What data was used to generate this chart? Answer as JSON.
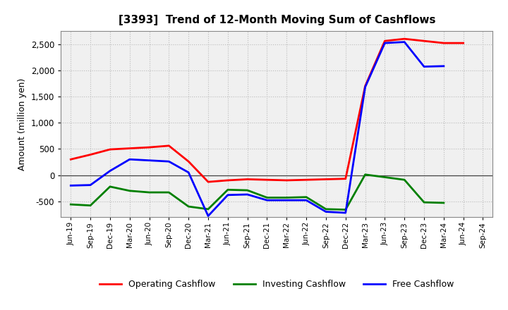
{
  "title": "[3393]  Trend of 12-Month Moving Sum of Cashflows",
  "ylabel": "Amount (million yen)",
  "x_labels": [
    "Jun-19",
    "Sep-19",
    "Dec-19",
    "Mar-20",
    "Jun-20",
    "Sep-20",
    "Dec-20",
    "Mar-21",
    "Jun-21",
    "Sep-21",
    "Dec-21",
    "Mar-22",
    "Jun-22",
    "Sep-22",
    "Dec-22",
    "Mar-23",
    "Jun-23",
    "Sep-23",
    "Dec-23",
    "Mar-24",
    "Jun-24",
    "Sep-24"
  ],
  "operating": [
    300,
    390,
    490,
    510,
    530,
    560,
    260,
    -130,
    -100,
    -80,
    -90,
    -100,
    -90,
    -80,
    -70,
    1700,
    2560,
    2600,
    2560,
    2520,
    2520,
    null
  ],
  "investing": [
    -560,
    -580,
    -220,
    -300,
    -330,
    -330,
    -600,
    -650,
    -280,
    -290,
    -430,
    -430,
    -420,
    -650,
    -660,
    10,
    -40,
    -90,
    -520,
    -530,
    null,
    null
  ],
  "free": [
    -200,
    -190,
    80,
    300,
    280,
    260,
    50,
    -780,
    -380,
    -370,
    -480,
    -480,
    -480,
    -700,
    -720,
    1680,
    2520,
    2540,
    2070,
    2080,
    null,
    null
  ],
  "ylim": [
    -800,
    2750
  ],
  "yticks": [
    -500,
    0,
    500,
    1000,
    1500,
    2000,
    2500
  ],
  "operating_color": "#ff0000",
  "investing_color": "#008000",
  "free_color": "#0000ff",
  "bg_color": "#ffffff",
  "plot_bg_color": "#f0f0f0",
  "grid_color": "#bbbbbb",
  "linewidth": 2.0
}
